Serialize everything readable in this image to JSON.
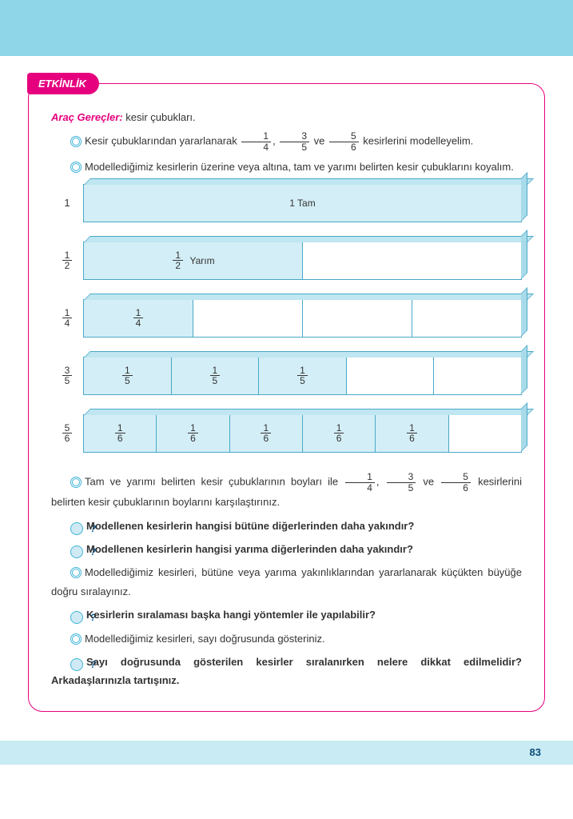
{
  "banner": {
    "bg": "#8ed6e8"
  },
  "tab": "ETKİNLİK",
  "tools_label": "Araç Gereçler:",
  "tools_text": " kesir çubukları.",
  "p1_a": "Kesir çubuklarından yararlanarak ",
  "p1_b": " kesirlerini modelleyelim.",
  "p2": "Modellediğimiz kesirlerin üzerine veya altına, tam ve yarımı belirten kesir çubuklarını koyalım.",
  "bars": [
    {
      "label_type": "text",
      "label": "1",
      "segments": 1,
      "filled": 1,
      "text": "1 Tam"
    },
    {
      "label_type": "frac",
      "label_n": "1",
      "label_d": "2",
      "segments": 2,
      "filled": 1,
      "text_frac": {
        "n": "1",
        "d": "2"
      },
      "text_suffix": " Yarım"
    },
    {
      "label_type": "frac",
      "label_n": "1",
      "label_d": "4",
      "segments": 4,
      "filled": 1,
      "seg_frac": {
        "n": "1",
        "d": "4"
      }
    },
    {
      "label_type": "frac",
      "label_n": "3",
      "label_d": "5",
      "segments": 5,
      "filled": 3,
      "seg_frac": {
        "n": "1",
        "d": "5"
      }
    },
    {
      "label_type": "frac",
      "label_n": "5",
      "label_d": "6",
      "segments": 6,
      "filled": 5,
      "seg_frac": {
        "n": "1",
        "d": "6"
      }
    }
  ],
  "p3_a": "Tam ve yarımı belirten kesir çubuklarının boyları ile ",
  "p3_b": " kesirlerini belirten kesir çubuklarının boylarını karşılaştırınız.",
  "q1": "Modellenen kesirlerin hangisi bütüne diğerlerinden daha yakındır?",
  "q2": "Modellenen kesirlerin hangisi yarıma diğerlerinden daha yakındır?",
  "p4": "Modellediğimiz kesirleri, bütüne veya yarıma yakınlıklarından yararlanarak küçükten büyüğe doğru sıralayınız.",
  "q3": "Kesirlerin sıralaması başka hangi yöntemler ile yapılabilir?",
  "p5": "Modellediğimiz kesirleri, sayı doğrusunda gösteriniz.",
  "q4": "Sayı doğrusunda gösterilen kesirler sıralanırken nelere dikkat edilmelidir? Arkadaşlarınızla tartışınız.",
  "fracs_inline": [
    {
      "n": "1",
      "d": "4"
    },
    {
      "n": "3",
      "d": "5"
    },
    {
      "n": "5",
      "d": "6"
    }
  ],
  "sep_comma": ", ",
  "sep_ve": " ve ",
  "page_number": "83"
}
